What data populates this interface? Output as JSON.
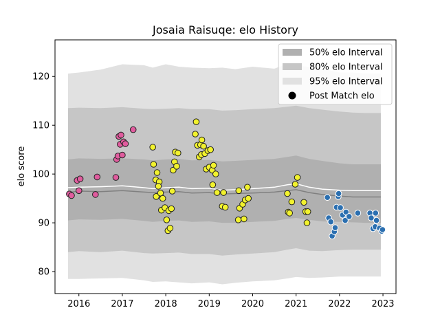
{
  "chart_data": {
    "type": "scatter",
    "title": "Josaia Raisuqe: elo History",
    "xlabel": "",
    "ylabel": "elo score",
    "xlim": [
      2015.45,
      2023.3
    ],
    "ylim": [
      75.5,
      127.5
    ],
    "x_ticks": [
      2016,
      2017,
      2018,
      2019,
      2020,
      2021,
      2022,
      2023
    ],
    "x_tick_labels": [
      "2016",
      "2017",
      "2018",
      "2019",
      "2020",
      "2021",
      "2022",
      "2023"
    ],
    "y_ticks": [
      80,
      90,
      100,
      110,
      120
    ],
    "y_tick_labels": [
      "80",
      "90",
      "100",
      "110",
      "120"
    ],
    "grid": false,
    "legend_position": "top-right",
    "legend": [
      {
        "label": "50% elo Interval",
        "kind": "band",
        "color": "#b0b0b0"
      },
      {
        "label": "80% elo Interval",
        "kind": "band",
        "color": "#c6c6c6"
      },
      {
        "label": "95% elo Interval",
        "kind": "band",
        "color": "#e1e1e1"
      },
      {
        "label": "Post Match elo",
        "kind": "marker",
        "color": "#000000"
      }
    ],
    "intervals": {
      "x": [
        2015.75,
        2016.0,
        2016.5,
        2017.0,
        2017.5,
        2017.7,
        2018.0,
        2018.3,
        2018.6,
        2019.0,
        2019.3,
        2019.6,
        2020.0,
        2020.5,
        2020.8,
        2021.0,
        2021.3,
        2021.6,
        2022.0,
        2022.3,
        2022.6,
        2022.95
      ],
      "mean": [
        96.2,
        96.5,
        96.4,
        96.6,
        96.3,
        96.2,
        96.3,
        96.4,
        96.1,
        96.2,
        95.9,
        96.0,
        96.1,
        96.3,
        96.6,
        96.8,
        96.2,
        95.8,
        95.5,
        95.3,
        95.3,
        95.3
      ],
      "median": [
        97.2,
        97.3,
        97.4,
        97.6,
        97.2,
        97.0,
        97.2,
        97.3,
        97.0,
        97.1,
        96.7,
        96.8,
        97.0,
        97.3,
        97.8,
        98.0,
        97.3,
        96.9,
        96.7,
        96.6,
        96.6,
        96.6
      ],
      "p50_low": [
        90.5,
        90.7,
        90.6,
        90.8,
        90.4,
        90.2,
        90.4,
        90.5,
        90.2,
        90.3,
        90.0,
        90.0,
        90.2,
        90.4,
        90.8,
        91.0,
        90.6,
        90.3,
        90.2,
        90.1,
        90.0,
        90.0
      ],
      "p50_high": [
        103.0,
        103.2,
        103.1,
        103.2,
        103.0,
        102.8,
        103.0,
        103.1,
        102.8,
        102.9,
        102.6,
        102.7,
        102.9,
        103.1,
        103.5,
        103.8,
        103.1,
        102.7,
        102.2,
        102.0,
        102.0,
        102.0
      ],
      "p80_low": [
        84.0,
        84.2,
        84.0,
        84.3,
        83.8,
        83.7,
        83.8,
        83.9,
        83.6,
        83.6,
        83.3,
        83.5,
        83.7,
        84.0,
        84.5,
        84.8,
        84.3,
        84.2,
        84.4,
        84.5,
        84.5,
        84.5
      ],
      "p80_high": [
        113.5,
        113.6,
        113.5,
        113.7,
        113.4,
        113.3,
        113.4,
        113.5,
        113.3,
        113.3,
        113.0,
        113.1,
        113.3,
        113.5,
        113.8,
        114.0,
        113.5,
        113.2,
        112.8,
        112.6,
        112.5,
        112.5
      ],
      "p95_low": [
        78.5,
        78.5,
        78.6,
        78.7,
        78.2,
        77.9,
        78.0,
        77.8,
        77.6,
        77.8,
        77.4,
        77.7,
        78.0,
        78.2,
        78.6,
        78.9,
        78.7,
        78.8,
        79.0,
        79.0,
        79.0,
        79.0
      ],
      "p95_high": [
        120.6,
        120.8,
        121.4,
        122.5,
        122.3,
        121.8,
        122.5,
        122.0,
        121.8,
        121.7,
        121.8,
        121.5,
        122.0,
        121.6,
        122.6,
        122.4,
        121.9,
        121.6,
        120.8,
        120.8,
        120.6,
        120.6
      ]
    },
    "series": [
      {
        "color": "#e05c9e",
        "points": [
          [
            2015.78,
            95.9
          ],
          [
            2015.83,
            95.6
          ],
          [
            2015.96,
            98.7
          ],
          [
            2016.0,
            96.6
          ],
          [
            2016.03,
            99.0
          ],
          [
            2016.38,
            95.8
          ],
          [
            2016.42,
            99.4
          ],
          [
            2016.85,
            99.3
          ],
          [
            2016.87,
            103.0
          ],
          [
            2016.9,
            103.7
          ],
          [
            2016.92,
            107.7
          ],
          [
            2016.95,
            106.1
          ],
          [
            2016.97,
            108.0
          ],
          [
            2017.0,
            103.9
          ],
          [
            2017.03,
            106.6
          ],
          [
            2017.07,
            106.2
          ],
          [
            2017.25,
            109.1
          ]
        ]
      },
      {
        "color": "#f2f22e",
        "points": [
          [
            2017.7,
            105.5
          ],
          [
            2017.72,
            102.0
          ],
          [
            2017.77,
            98.8
          ],
          [
            2017.8,
            100.3
          ],
          [
            2017.78,
            95.4
          ],
          [
            2017.85,
            98.4
          ],
          [
            2017.83,
            97.5
          ],
          [
            2017.88,
            96.1
          ],
          [
            2017.9,
            92.6
          ],
          [
            2017.93,
            95.0
          ],
          [
            2017.98,
            93.1
          ],
          [
            2018.02,
            90.6
          ],
          [
            2018.05,
            88.4
          ],
          [
            2018.07,
            92.5
          ],
          [
            2018.1,
            88.9
          ],
          [
            2018.13,
            92.9
          ],
          [
            2018.15,
            96.5
          ],
          [
            2018.17,
            100.8
          ],
          [
            2018.2,
            102.5
          ],
          [
            2018.22,
            104.5
          ],
          [
            2018.25,
            101.6
          ],
          [
            2018.28,
            104.3
          ],
          [
            2018.68,
            108.2
          ],
          [
            2018.7,
            110.7
          ],
          [
            2018.73,
            105.9
          ],
          [
            2018.77,
            103.5
          ],
          [
            2018.8,
            106.0
          ],
          [
            2018.82,
            104.0
          ],
          [
            2018.83,
            107.0
          ],
          [
            2018.87,
            105.7
          ],
          [
            2018.9,
            104.2
          ],
          [
            2018.93,
            101.0
          ],
          [
            2018.97,
            104.8
          ],
          [
            2019.0,
            101.4
          ],
          [
            2019.03,
            105.0
          ],
          [
            2019.07,
            100.8
          ],
          [
            2019.08,
            97.8
          ],
          [
            2019.1,
            101.8
          ],
          [
            2019.15,
            100.0
          ],
          [
            2019.18,
            96.2
          ],
          [
            2019.3,
            93.4
          ],
          [
            2019.33,
            96.2
          ],
          [
            2019.37,
            93.2
          ],
          [
            2019.67,
            90.6
          ],
          [
            2019.68,
            96.6
          ],
          [
            2019.7,
            93.0
          ],
          [
            2019.77,
            93.8
          ],
          [
            2019.8,
            90.8
          ],
          [
            2019.83,
            94.7
          ],
          [
            2019.88,
            97.3
          ],
          [
            2019.9,
            95.0
          ],
          [
            2020.8,
            96.0
          ],
          [
            2020.82,
            92.2
          ],
          [
            2020.85,
            92.0
          ],
          [
            2020.9,
            94.3
          ],
          [
            2020.98,
            97.9
          ],
          [
            2021.03,
            99.3
          ],
          [
            2021.18,
            94.2
          ],
          [
            2021.22,
            92.3
          ],
          [
            2021.25,
            90.0
          ],
          [
            2021.27,
            92.3
          ]
        ]
      },
      {
        "color": "#2b6fb0",
        "points": [
          [
            2021.72,
            95.2
          ],
          [
            2021.75,
            91.0
          ],
          [
            2021.8,
            90.2
          ],
          [
            2021.83,
            87.3
          ],
          [
            2021.88,
            88.2
          ],
          [
            2021.9,
            89.0
          ],
          [
            2021.93,
            93.2
          ],
          [
            2021.97,
            95.4
          ],
          [
            2021.98,
            96.0
          ],
          [
            2022.02,
            93.1
          ],
          [
            2022.07,
            91.6
          ],
          [
            2022.13,
            90.5
          ],
          [
            2022.15,
            92.2
          ],
          [
            2022.22,
            91.3
          ],
          [
            2022.42,
            92.0
          ],
          [
            2022.7,
            92.0
          ],
          [
            2022.73,
            91.0
          ],
          [
            2022.77,
            88.8
          ],
          [
            2022.82,
            89.2
          ],
          [
            2022.83,
            92.0
          ],
          [
            2022.85,
            90.5
          ],
          [
            2022.92,
            88.9
          ],
          [
            2022.97,
            88.3
          ],
          [
            2022.99,
            88.6
          ]
        ]
      }
    ]
  }
}
